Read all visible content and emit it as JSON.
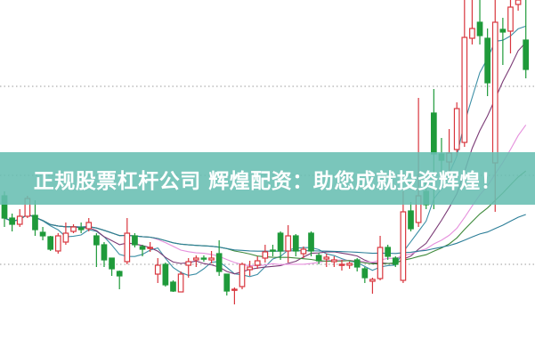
{
  "banner": {
    "title": "正规股票杠杆公司 辉煌配资：助您成就投资辉煌！"
  },
  "colors": {
    "up": "#d9363e",
    "down": "#1f9a3a",
    "grid": "#999999",
    "banner": "#68beb2"
  },
  "chart_data": {
    "type": "candlestick",
    "title": "",
    "xlabel": "",
    "ylabel": "",
    "ylim": [
      0,
      400
    ],
    "grid": "dotted horizontal",
    "grid_levels": [
      103,
      203,
      303
    ],
    "candles_ohlc_note_fields": [
      "open",
      "close",
      "high",
      "low"
    ],
    "candles": [
      [
        180,
        155,
        185,
        145
      ],
      [
        155,
        148,
        160,
        140
      ],
      [
        148,
        157,
        165,
        145
      ],
      [
        157,
        177,
        180,
        155
      ],
      [
        158,
        142,
        175,
        135
      ],
      [
        139,
        135,
        145,
        130
      ],
      [
        134,
        120,
        135,
        118
      ],
      [
        118,
        135,
        138,
        115
      ],
      [
        128,
        138,
        150,
        125
      ],
      [
        140,
        145,
        148,
        138
      ],
      [
        144,
        142,
        150,
        138
      ],
      [
        143,
        150,
        155,
        140
      ],
      [
        135,
        125,
        138,
        100
      ],
      [
        125,
        108,
        128,
        100
      ],
      [
        110,
        98,
        110,
        90
      ],
      [
        95,
        90,
        96,
        75
      ],
      [
        106,
        138,
        155,
        103
      ],
      [
        135,
        125,
        138,
        122
      ],
      [
        123,
        120,
        125,
        112
      ],
      [
        121,
        122,
        128,
        117
      ],
      [
        92,
        102,
        110,
        82
      ],
      [
        103,
        80,
        105,
        78
      ],
      [
        83,
        73,
        85,
        72
      ],
      [
        72,
        92,
        95,
        72
      ],
      [
        102,
        106,
        110,
        88
      ],
      [
        108,
        110,
        113,
        100
      ],
      [
        110,
        109,
        113,
        106
      ],
      [
        108,
        110,
        118,
        104
      ],
      [
        115,
        95,
        130,
        90
      ],
      [
        92,
        73,
        92,
        68
      ],
      [
        74,
        75,
        77,
        58
      ],
      [
        78,
        103,
        105,
        75
      ],
      [
        97,
        100,
        107,
        90
      ],
      [
        102,
        107,
        112,
        98
      ],
      [
        110,
        117,
        125,
        105
      ],
      [
        119,
        118,
        125,
        112
      ],
      [
        138,
        118,
        140,
        108
      ],
      [
        118,
        135,
        147,
        105
      ],
      [
        135,
        118,
        137,
        112
      ],
      [
        115,
        120,
        123,
        110
      ],
      [
        138,
        118,
        140,
        112
      ],
      [
        113,
        107,
        116,
        103
      ],
      [
        109,
        111,
        115,
        100
      ],
      [
        106,
        108,
        112,
        100
      ],
      [
        102,
        103,
        108,
        96
      ],
      [
        102,
        104,
        106,
        98
      ],
      [
        108,
        100,
        110,
        95
      ],
      [
        98,
        88,
        100,
        82
      ],
      [
        84,
        86,
        88,
        70
      ],
      [
        87,
        122,
        135,
        85
      ],
      [
        122,
        112,
        125,
        108
      ],
      [
        110,
        103,
        112,
        100
      ],
      [
        85,
        162,
        185,
        82
      ],
      [
        163,
        143,
        173,
        140
      ],
      [
        150,
        180,
        290,
        145
      ],
      [
        185,
        170,
        200,
        165
      ],
      [
        273,
        227,
        300,
        165
      ],
      [
        227,
        220,
        245,
        200
      ],
      [
        218,
        228,
        255,
        205
      ],
      [
        232,
        278,
        285,
        225
      ],
      [
        240,
        358,
        400,
        235
      ],
      [
        357,
        368,
        400,
        350
      ],
      [
        375,
        360,
        400,
        350
      ],
      [
        357,
        307,
        368,
        292
      ],
      [
        217,
        375,
        400,
        162
      ],
      [
        367,
        364,
        380,
        327
      ],
      [
        365,
        392,
        400,
        340
      ],
      [
        395,
        400,
        400,
        388
      ],
      [
        355,
        322,
        400,
        312
      ]
    ],
    "moving_averages": [
      {
        "period": 5,
        "color": "#3d8fa6"
      },
      {
        "period": 10,
        "color": "#7b3b76"
      },
      {
        "period": 20,
        "color": "#e58fdc"
      },
      {
        "period": 30,
        "color": "#3f8a3c"
      },
      {
        "period": 60,
        "color": "#2c7e98"
      }
    ]
  }
}
